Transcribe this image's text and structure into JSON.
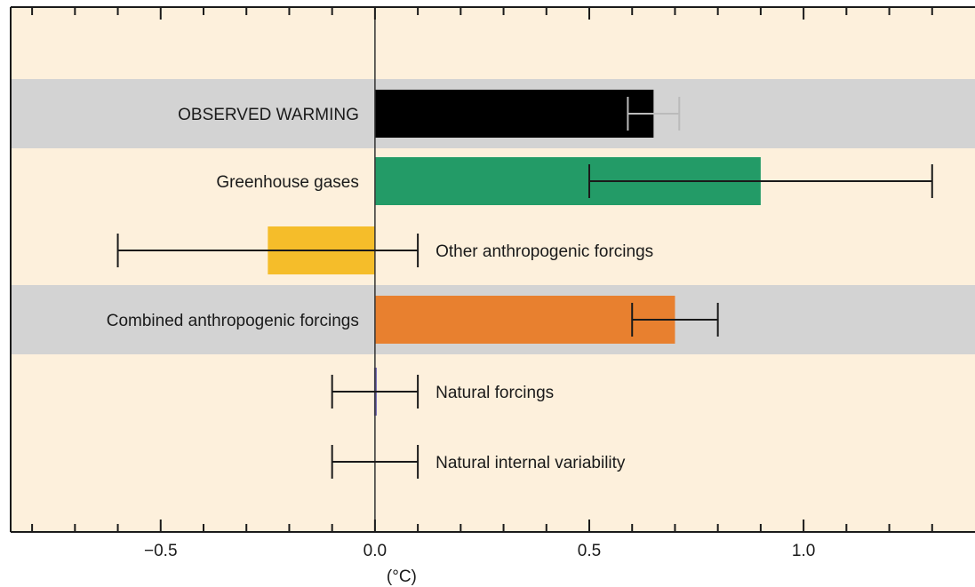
{
  "chart_data": {
    "type": "bar",
    "orientation": "horizontal",
    "title": "",
    "xlabel": "(°C)",
    "ylabel": "",
    "xlim": [
      -0.85,
      1.4
    ],
    "x_ticks": [
      -0.5,
      0.0,
      0.5,
      1.0
    ],
    "x_tick_labels": [
      "−0.5",
      "0.0",
      "0.5",
      "1.0"
    ],
    "minor_tick_step": 0.1,
    "grid": false,
    "colors": {
      "background": "#fdf0dc",
      "band": "#d3d3d3",
      "axis": "#1a1a1a",
      "zero_line": "#333333",
      "error_bar": "#1a1a1a"
    },
    "categories": [
      {
        "label": "OBSERVED WARMING",
        "value": 0.65,
        "err_low": 0.59,
        "err_high": 0.71,
        "color": "#000000",
        "error_color": "#bbbbbb",
        "label_side": "left",
        "band": true
      },
      {
        "label": "Greenhouse gases",
        "value": 0.9,
        "err_low": 0.5,
        "err_high": 1.3,
        "color": "#239b67",
        "error_color": "#1a1a1a",
        "label_side": "left",
        "band": false
      },
      {
        "label": "Other anthropogenic forcings",
        "value": -0.25,
        "err_low": -0.6,
        "err_high": 0.1,
        "color": "#f5bd2a",
        "error_color": "#1a1a1a",
        "label_side": "right",
        "band": false
      },
      {
        "label": "Combined anthropogenic forcings",
        "value": 0.7,
        "err_low": 0.6,
        "err_high": 0.8,
        "color": "#e8802f",
        "error_color": "#1a1a1a",
        "label_side": "left",
        "band": true
      },
      {
        "label": "Natural forcings",
        "value": 0.0,
        "err_low": -0.1,
        "err_high": 0.1,
        "color": "#6a5fb0",
        "error_color": "#1a1a1a",
        "label_side": "right",
        "band": false
      },
      {
        "label": "Natural internal variability",
        "value": 0.0,
        "err_low": -0.1,
        "err_high": 0.1,
        "color": "none",
        "error_color": "#1a1a1a",
        "label_side": "right",
        "band": false
      }
    ]
  }
}
